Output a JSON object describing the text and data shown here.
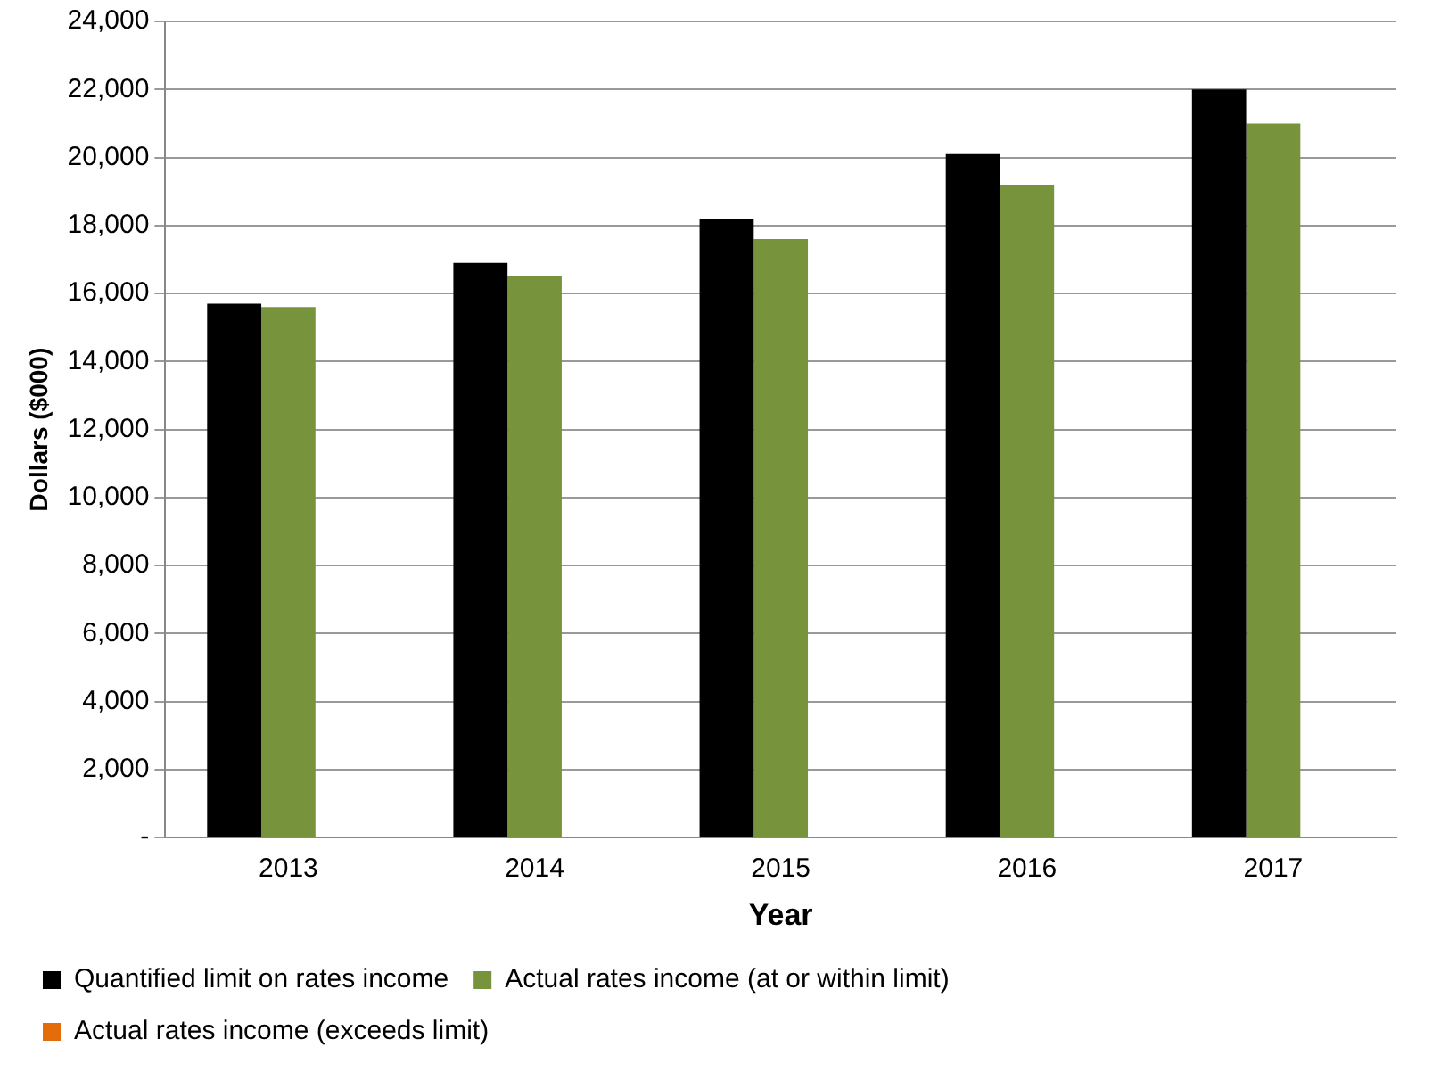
{
  "chart_data": {
    "type": "bar",
    "xlabel": "Year",
    "ylabel": "Dollars ($000)",
    "categories": [
      "2013",
      "2014",
      "2015",
      "2016",
      "2017"
    ],
    "series": [
      {
        "name": "Quantified limit on rates income",
        "color": "#000000",
        "values": [
          15700,
          16900,
          18200,
          20100,
          22000
        ]
      },
      {
        "name": "Actual rates income (at or within limit)",
        "color": "#77933c",
        "values": [
          15600,
          16500,
          17600,
          19200,
          21000
        ]
      },
      {
        "name": "Actual rates income (exceeds limit)",
        "color": "#e46c0a",
        "values": [
          null,
          null,
          null,
          null,
          null
        ]
      }
    ],
    "ylim": [
      0,
      24000
    ],
    "yticks": [
      {
        "value": 0,
        "label": "-"
      },
      {
        "value": 2000,
        "label": "2,000"
      },
      {
        "value": 4000,
        "label": "4,000"
      },
      {
        "value": 6000,
        "label": "6,000"
      },
      {
        "value": 8000,
        "label": "8,000"
      },
      {
        "value": 10000,
        "label": "10,000"
      },
      {
        "value": 12000,
        "label": "12,000"
      },
      {
        "value": 14000,
        "label": "14,000"
      },
      {
        "value": 16000,
        "label": "16,000"
      },
      {
        "value": 18000,
        "label": "18,000"
      },
      {
        "value": 20000,
        "label": "20,000"
      },
      {
        "value": 22000,
        "label": "22,000"
      },
      {
        "value": 24000,
        "label": "24,000"
      }
    ],
    "grid": "y",
    "legend": "bottom"
  }
}
